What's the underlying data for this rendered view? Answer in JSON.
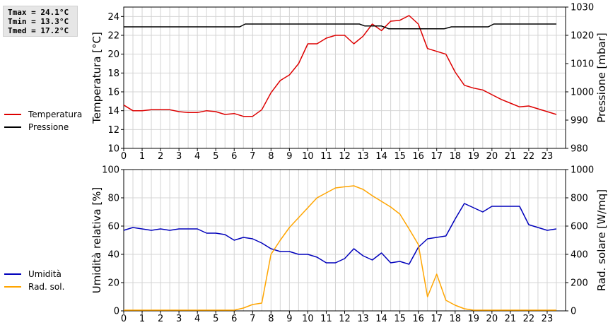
{
  "stats": {
    "tmax": "Tmax = 24.1°C",
    "tmin": "Tmin = 13.3°C",
    "tmed": "Tmed = 17.2°C"
  },
  "colors": {
    "temperature": "#dd0000",
    "pressure": "#000000",
    "humidity": "#0000bb",
    "radiation": "#ffa500",
    "grid": "#d4d4d4"
  },
  "chart_data": [
    {
      "type": "line",
      "x_ticks": [
        "0",
        "1",
        "2",
        "3",
        "4",
        "5",
        "6",
        "7",
        "8",
        "9",
        "10",
        "11",
        "12",
        "13",
        "14",
        "15",
        "16",
        "17",
        "18",
        "19",
        "20",
        "21",
        "22",
        "23"
      ],
      "xlim": [
        0,
        24
      ],
      "ylabel_left": "Temperatura [°C]",
      "ylim_left": [
        10,
        25
      ],
      "yticks_left": [
        10,
        12,
        14,
        16,
        18,
        20,
        22,
        24
      ],
      "ylabel_right": "Pressione [mbar]",
      "ylim_right": [
        980,
        1030
      ],
      "yticks_right": [
        980,
        990,
        1000,
        1010,
        1020,
        1030
      ],
      "legend_position": "left",
      "grid": true,
      "series": [
        {
          "name": "Temperatura",
          "axis": "left",
          "color_key": "temperature",
          "points": [
            [
              0,
              14.6
            ],
            [
              0.5,
              14.0
            ],
            [
              1,
              14.0
            ],
            [
              1.5,
              14.1
            ],
            [
              2,
              14.1
            ],
            [
              2.5,
              14.1
            ],
            [
              3,
              13.9
            ],
            [
              3.5,
              13.8
            ],
            [
              4,
              13.8
            ],
            [
              4.5,
              14.0
            ],
            [
              5,
              13.9
            ],
            [
              5.5,
              13.6
            ],
            [
              6,
              13.7
            ],
            [
              6.5,
              13.4
            ],
            [
              7,
              13.4
            ],
            [
              7.5,
              14.1
            ],
            [
              8,
              15.9
            ],
            [
              8.5,
              17.2
            ],
            [
              9,
              17.8
            ],
            [
              9.5,
              19.0
            ],
            [
              10,
              21.1
            ],
            [
              10.5,
              21.1
            ],
            [
              11,
              21.7
            ],
            [
              11.5,
              22.0
            ],
            [
              12,
              22.0
            ],
            [
              12.5,
              21.1
            ],
            [
              13,
              21.9
            ],
            [
              13.5,
              23.2
            ],
            [
              14,
              22.5
            ],
            [
              14.5,
              23.5
            ],
            [
              15,
              23.6
            ],
            [
              15.5,
              24.1
            ],
            [
              16,
              23.2
            ],
            [
              16.5,
              20.6
            ],
            [
              17,
              20.3
            ],
            [
              17.5,
              20.0
            ],
            [
              18,
              18.1
            ],
            [
              18.5,
              16.7
            ],
            [
              19,
              16.4
            ],
            [
              19.5,
              16.2
            ],
            [
              20,
              15.7
            ],
            [
              20.5,
              15.2
            ],
            [
              21,
              14.8
            ],
            [
              21.5,
              14.4
            ],
            [
              22,
              14.5
            ],
            [
              22.5,
              14.2
            ],
            [
              23,
              13.9
            ],
            [
              23.5,
              13.6
            ]
          ]
        },
        {
          "name": "Pressione",
          "axis": "right",
          "color_key": "pressure",
          "points": [
            [
              0,
              1023
            ],
            [
              6.3,
              1023
            ],
            [
              6.6,
              1024
            ],
            [
              12.8,
              1024
            ],
            [
              13.1,
              1023.3
            ],
            [
              14.0,
              1023.3
            ],
            [
              14.4,
              1022.3
            ],
            [
              17.4,
              1022.3
            ],
            [
              17.8,
              1023
            ],
            [
              19.8,
              1023
            ],
            [
              20.1,
              1024
            ],
            [
              23.5,
              1024
            ]
          ]
        }
      ]
    },
    {
      "type": "line",
      "x_ticks": [
        "0",
        "1",
        "2",
        "3",
        "4",
        "5",
        "6",
        "7",
        "8",
        "9",
        "10",
        "11",
        "12",
        "13",
        "14",
        "15",
        "16",
        "17",
        "18",
        "19",
        "20",
        "21",
        "22",
        "23"
      ],
      "xlim": [
        0,
        24
      ],
      "ylabel_left": "Umidità relativa [%]",
      "ylim_left": [
        0,
        100
      ],
      "yticks_left": [
        0,
        20,
        40,
        60,
        80,
        100
      ],
      "ylabel_right": "Rad. solare [W/mq]",
      "ylim_right": [
        0,
        1000
      ],
      "yticks_right": [
        0,
        200,
        400,
        600,
        800,
        1000
      ],
      "legend_position": "left",
      "grid": true,
      "series": [
        {
          "name": "Umidità",
          "axis": "left",
          "color_key": "humidity",
          "points": [
            [
              0,
              57
            ],
            [
              0.5,
              59
            ],
            [
              1,
              58
            ],
            [
              1.5,
              57
            ],
            [
              2,
              58
            ],
            [
              2.5,
              57
            ],
            [
              3,
              58
            ],
            [
              3.5,
              58
            ],
            [
              4,
              58
            ],
            [
              4.5,
              55
            ],
            [
              5,
              55
            ],
            [
              5.5,
              54
            ],
            [
              6,
              50
            ],
            [
              6.5,
              52
            ],
            [
              7,
              51
            ],
            [
              7.5,
              48
            ],
            [
              8,
              44
            ],
            [
              8.5,
              42
            ],
            [
              9,
              42
            ],
            [
              9.5,
              40
            ],
            [
              10,
              40
            ],
            [
              10.5,
              38
            ],
            [
              11,
              34
            ],
            [
              11.5,
              34
            ],
            [
              12,
              37
            ],
            [
              12.5,
              44
            ],
            [
              13,
              39
            ],
            [
              13.5,
              36
            ],
            [
              14,
              41
            ],
            [
              14.5,
              34
            ],
            [
              15,
              35
            ],
            [
              15.5,
              33
            ],
            [
              16,
              45
            ],
            [
              16.5,
              51
            ],
            [
              17,
              52
            ],
            [
              17.5,
              53
            ],
            [
              18,
              65
            ],
            [
              18.5,
              76
            ],
            [
              19,
              73
            ],
            [
              19.5,
              70
            ],
            [
              20,
              74
            ],
            [
              20.5,
              74
            ],
            [
              21,
              74
            ],
            [
              21.5,
              74
            ],
            [
              22,
              61
            ],
            [
              22.5,
              59
            ],
            [
              23,
              57
            ],
            [
              23.5,
              58
            ]
          ]
        },
        {
          "name": "Rad. sol.",
          "axis": "right",
          "color_key": "radiation",
          "points": [
            [
              0,
              5
            ],
            [
              6,
              5
            ],
            [
              6.5,
              20
            ],
            [
              7,
              45
            ],
            [
              7.5,
              55
            ],
            [
              8,
              400
            ],
            [
              8.5,
              500
            ],
            [
              9,
              590
            ],
            [
              9.5,
              660
            ],
            [
              10,
              730
            ],
            [
              10.5,
              800
            ],
            [
              11,
              835
            ],
            [
              11.5,
              870
            ],
            [
              12,
              878
            ],
            [
              12.5,
              885
            ],
            [
              13,
              860
            ],
            [
              13.5,
              815
            ],
            [
              14,
              775
            ],
            [
              14.5,
              735
            ],
            [
              15,
              685
            ],
            [
              15.5,
              580
            ],
            [
              16,
              470
            ],
            [
              16.5,
              100
            ],
            [
              17,
              260
            ],
            [
              17.5,
              75
            ],
            [
              18,
              40
            ],
            [
              18.5,
              15
            ],
            [
              19,
              5
            ],
            [
              23.5,
              5
            ]
          ]
        }
      ]
    }
  ]
}
